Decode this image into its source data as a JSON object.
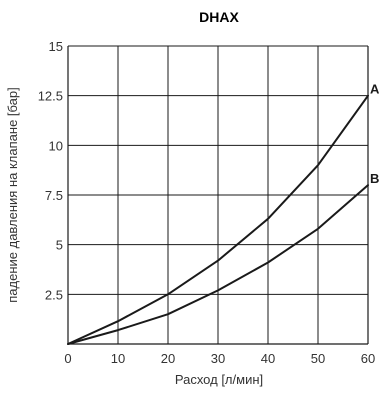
{
  "chart_data": {
    "type": "line",
    "title": "DHAX",
    "xlabel": "Расход [л/мин]",
    "ylabel": "падение давления на клапане [бар]",
    "xlim": [
      0,
      60
    ],
    "ylim": [
      0,
      15
    ],
    "x_ticks": [
      "0",
      "10",
      "20",
      "30",
      "40",
      "50",
      "60"
    ],
    "y_ticks": [
      "2.5",
      "5",
      "7.5",
      "10",
      "12.5",
      "15"
    ],
    "grid": true,
    "colors": {
      "line": "#1a1a1a",
      "grid": "#1a1a1a",
      "text": "#333333"
    },
    "x": [
      0,
      10,
      20,
      30,
      40,
      50,
      60
    ],
    "series": [
      {
        "name": "A",
        "values": [
          0,
          1.15,
          2.5,
          4.2,
          6.3,
          9.0,
          12.5
        ]
      },
      {
        "name": "B",
        "values": [
          0,
          0.7,
          1.5,
          2.7,
          4.1,
          5.8,
          8.0
        ]
      }
    ]
  }
}
